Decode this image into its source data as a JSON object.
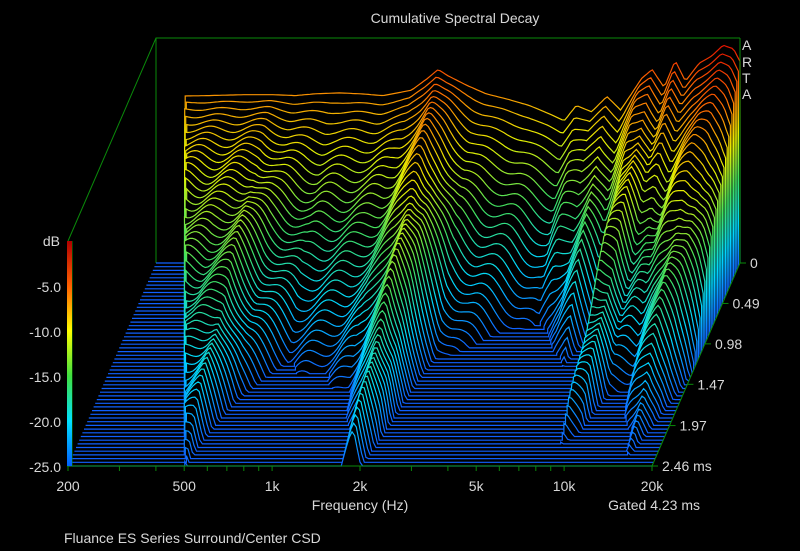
{
  "chart_data": {
    "type": "waterfall",
    "title": "Cumulative Spectral Decay",
    "xlabel": "Frequency (Hz)",
    "ylabel": "dB",
    "zlabel": "ms",
    "caption": "Fluance ES Series Surround/Center CSD",
    "gate_label": "Gated 4.23 ms",
    "watermark": [
      "A",
      "R",
      "T",
      "A"
    ],
    "xlim": [
      200,
      20000
    ],
    "ylim": [
      -25,
      0
    ],
    "tlim": [
      0,
      2.46
    ],
    "x_tick_labels": [
      {
        "value": 200,
        "label": "200"
      },
      {
        "value": 500,
        "label": "500"
      },
      {
        "value": 1000,
        "label": "1k"
      },
      {
        "value": 2000,
        "label": "2k"
      },
      {
        "value": 5000,
        "label": "5k"
      },
      {
        "value": 10000,
        "label": "10k"
      },
      {
        "value": 20000,
        "label": "20k"
      }
    ],
    "x_minor_ticks": [
      300,
      400,
      600,
      700,
      800,
      900,
      3000,
      4000,
      6000,
      7000,
      8000,
      9000
    ],
    "y_tick_labels": [
      {
        "value": -5,
        "label": "-5.0"
      },
      {
        "value": -10,
        "label": "-10.0"
      },
      {
        "value": -15,
        "label": "-15.0"
      },
      {
        "value": -20,
        "label": "-20.0"
      },
      {
        "value": -25,
        "label": "-25.0"
      }
    ],
    "t_tick_labels": [
      {
        "value": 0,
        "label": "0"
      },
      {
        "value": 0.49,
        "label": "0.49"
      },
      {
        "value": 0.98,
        "label": "0.98"
      },
      {
        "value": 1.47,
        "label": "1.47"
      },
      {
        "value": 1.97,
        "label": "1.97"
      },
      {
        "value": 2.46,
        "label": "2.46 ms"
      }
    ],
    "slice_count": 56,
    "low_freq_limit_hz": [
      250,
      500
    ],
    "initial_response": {
      "freq": [
        200,
        300,
        400,
        500,
        600,
        700,
        850,
        1000,
        1200,
        1500,
        1700,
        1850,
        2000,
        2300,
        2700,
        3200,
        3800,
        4500,
        5000,
        5500,
        6200,
        7000,
        7800,
        8500,
        9200,
        10000,
        11000,
        12000,
        13000,
        14500,
        16000,
        17500,
        19000,
        20000
      ],
      "db": [
        -6.5,
        -6.4,
        -6.3,
        -6.3,
        -6.4,
        -6.2,
        -6.1,
        -6.2,
        -6.4,
        -5.8,
        -4.5,
        -3.5,
        -4.2,
        -5.2,
        -6.2,
        -6.8,
        -7.5,
        -8.5,
        -9.2,
        -7.5,
        -8.2,
        -6.5,
        -8,
        -6.2,
        -4.5,
        -3.5,
        -5.5,
        -2.5,
        -4.8,
        -2.8,
        -2,
        -0.8,
        -1.2,
        -2.6
      ]
    },
    "decay_db_per_ms": {
      "freq": [
        200,
        400,
        500,
        600,
        800,
        1000,
        1400,
        1700,
        1900,
        2100,
        2500,
        3000,
        4000,
        5000,
        6000,
        7000,
        8000,
        9000,
        10000,
        12000,
        14000,
        16000,
        20000
      ],
      "rate": [
        7,
        8,
        7,
        11,
        15,
        14,
        12,
        9,
        7,
        9,
        16,
        18,
        20,
        22,
        17,
        14,
        18,
        9,
        10,
        14,
        11,
        10,
        16
      ]
    },
    "colors": {
      "frame": "#0a8a0a",
      "floor": "#1060ff",
      "text": "#d8d8d8"
    }
  }
}
